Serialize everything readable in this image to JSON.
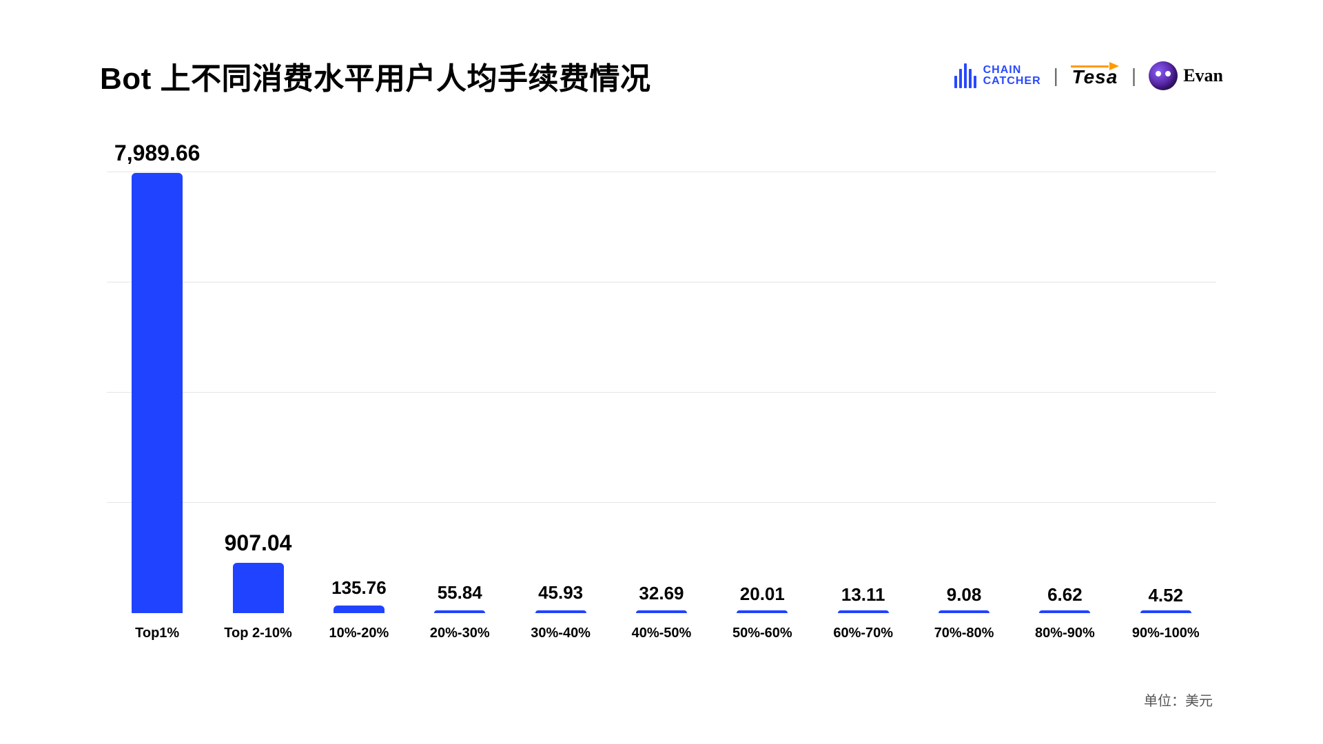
{
  "title": "Bot 上不同消费水平用户人均手续费情况",
  "unit_label": "单位：美元",
  "logos": {
    "chain_catcher": {
      "line1": "CHAIN",
      "line2": "CATCHER",
      "color": "#2848ff"
    },
    "tesa": {
      "text": "Tesa",
      "arrow_color": "#ff9a00"
    },
    "evan": {
      "text": "Evan"
    }
  },
  "chart": {
    "type": "bar",
    "bar_color": "#2043ff",
    "bar_radius": 6,
    "bar_width_ratio": 0.56,
    "background_color": "#ffffff",
    "grid_color": "#e5e5e5",
    "grid_lines": 4,
    "ylim_max": 8000,
    "title_fontsize": 44,
    "value_label_fontsize_large": 32,
    "value_label_fontsize_small": 26,
    "category_label_fontsize": 20,
    "categories": [
      "Top1%",
      "Top 2-10%",
      "10%-20%",
      "20%-30%",
      "30%-40%",
      "40%-50%",
      "50%-60%",
      "60%-70%",
      "70%-80%",
      "80%-90%",
      "90%-100%"
    ],
    "values": [
      7989.66,
      907.04,
      135.76,
      55.84,
      45.93,
      32.69,
      20.01,
      13.11,
      9.08,
      6.62,
      4.52
    ],
    "value_labels": [
      "7,989.66",
      "907.04",
      "135.76",
      "55.84",
      "45.93",
      "32.69",
      "20.01",
      "13.11",
      "9.08",
      "6.62",
      "4.52"
    ]
  }
}
